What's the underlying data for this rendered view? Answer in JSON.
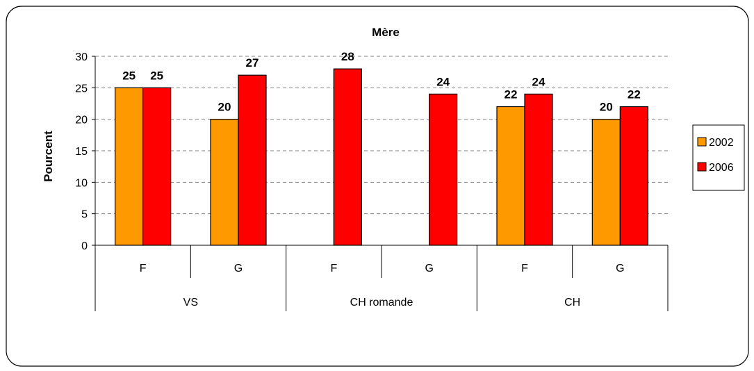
{
  "chart_data": {
    "type": "bar",
    "title": "Mère",
    "xlabel": "",
    "ylabel": "Pourcent",
    "ylim": [
      0,
      30
    ],
    "yticks": [
      0,
      5,
      10,
      15,
      20,
      25,
      30
    ],
    "grid": true,
    "legend_position": "right",
    "categories": [
      "F",
      "G",
      "F",
      "G",
      "F",
      "G"
    ],
    "groups": [
      {
        "label": "VS",
        "span": 2
      },
      {
        "label": "CH romande",
        "span": 2
      },
      {
        "label": "CH",
        "span": 2
      }
    ],
    "series": [
      {
        "name": "2002",
        "color": "#FF9900",
        "values": [
          25,
          20,
          null,
          null,
          22,
          20
        ]
      },
      {
        "name": "2006",
        "color": "#FF0000",
        "values": [
          25,
          27,
          28,
          24,
          24,
          22
        ]
      }
    ]
  }
}
